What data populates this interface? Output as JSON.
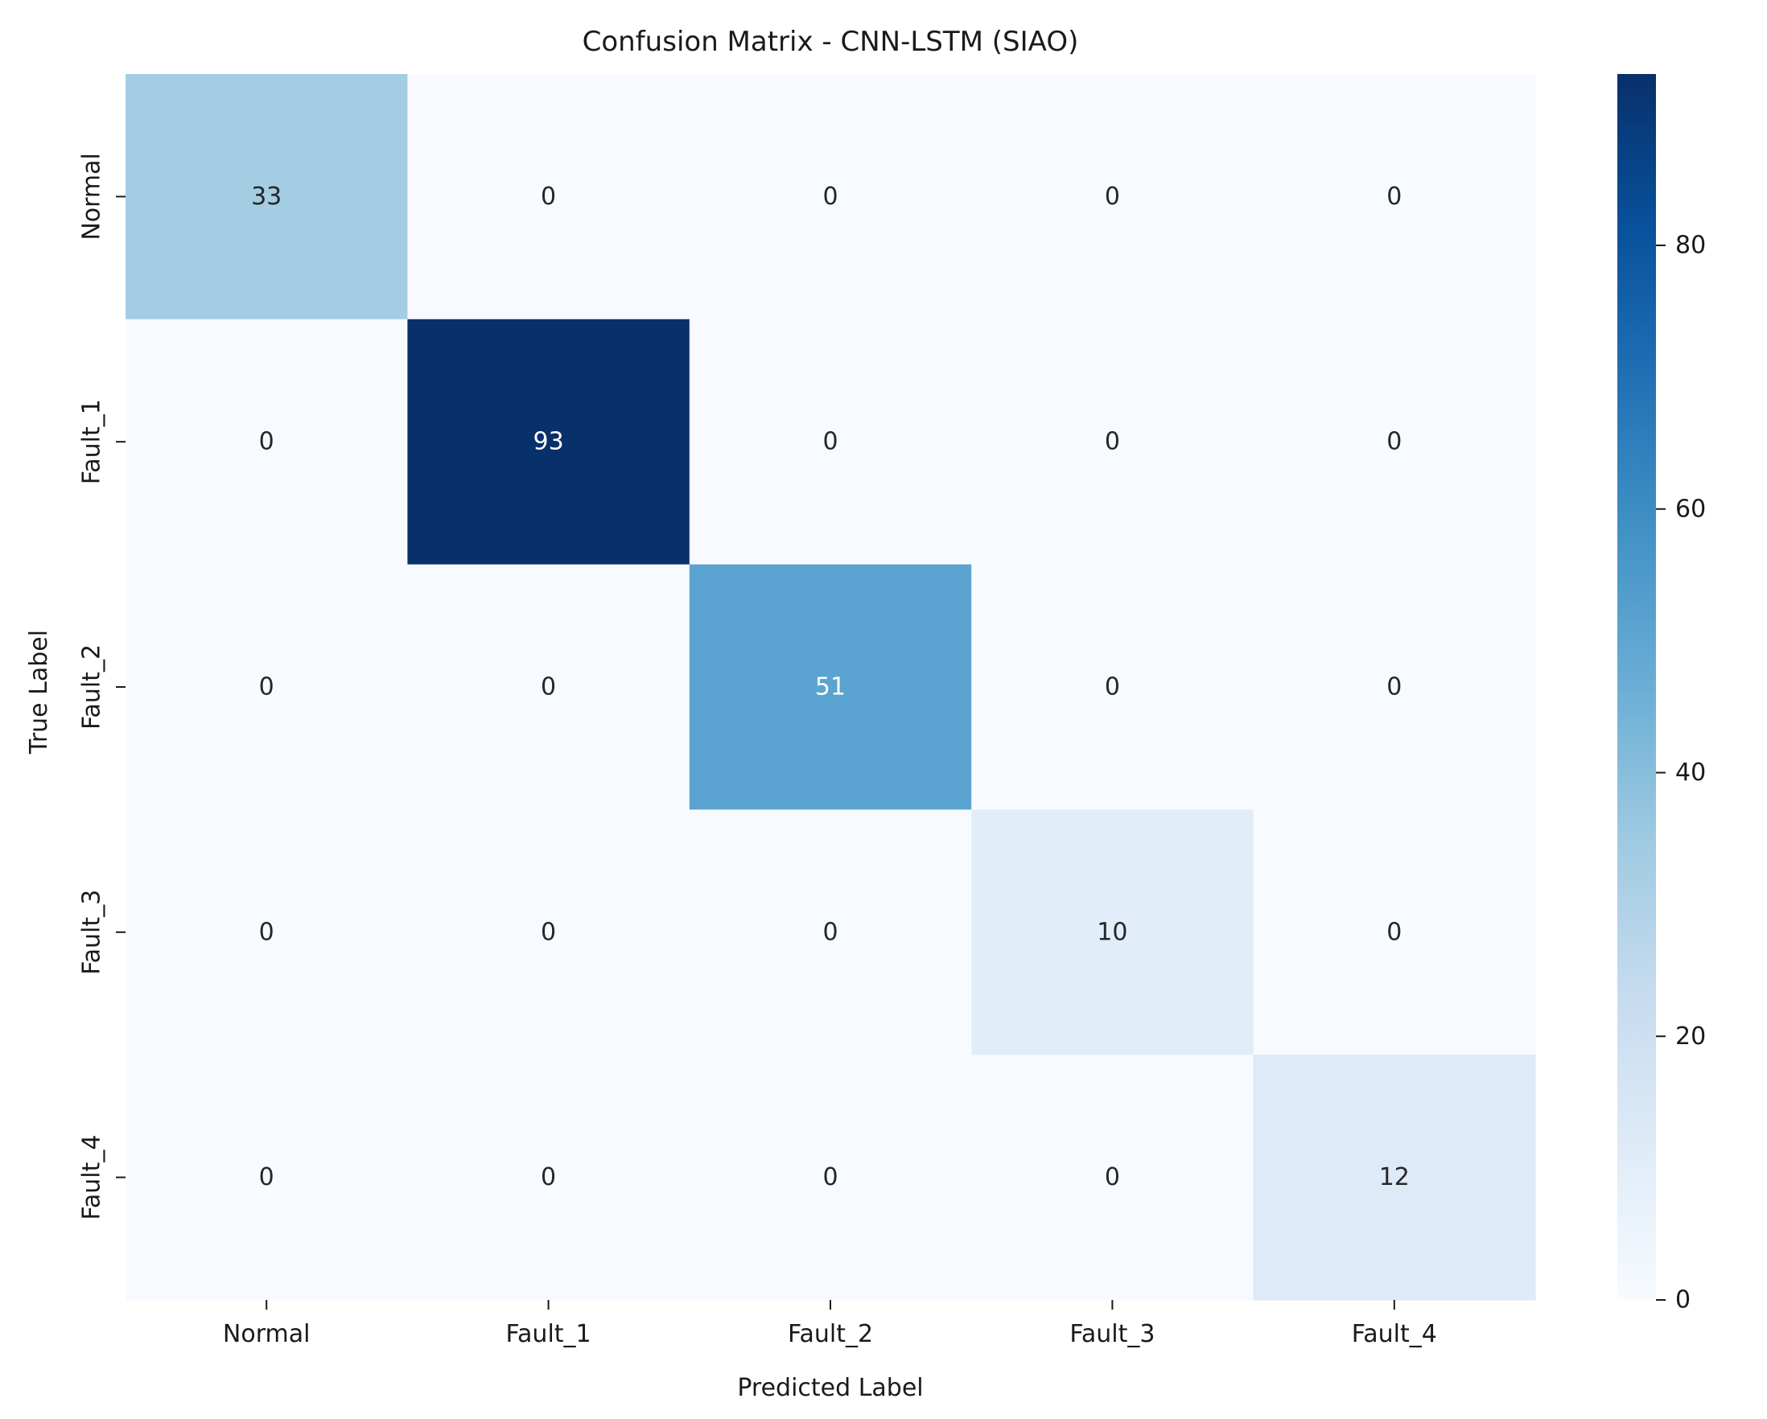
{
  "chart_data": {
    "type": "heatmap",
    "title": "Confusion Matrix - CNN-LSTM (SIAO)",
    "xlabel": "Predicted Label",
    "ylabel": "True Label",
    "x_categories": [
      "Normal",
      "Fault_1",
      "Fault_2",
      "Fault_3",
      "Fault_4"
    ],
    "y_categories": [
      "Normal",
      "Fault_1",
      "Fault_2",
      "Fault_3",
      "Fault_4"
    ],
    "values": [
      [
        33,
        0,
        0,
        0,
        0
      ],
      [
        0,
        93,
        0,
        0,
        0
      ],
      [
        0,
        0,
        51,
        0,
        0
      ],
      [
        0,
        0,
        0,
        10,
        0
      ],
      [
        0,
        0,
        0,
        0,
        12
      ]
    ],
    "colorscale": "Blues",
    "colorbar": {
      "range": [
        0,
        93
      ],
      "ticks": [
        0,
        20,
        40,
        60,
        80
      ]
    },
    "grid": false,
    "annotations": true
  }
}
